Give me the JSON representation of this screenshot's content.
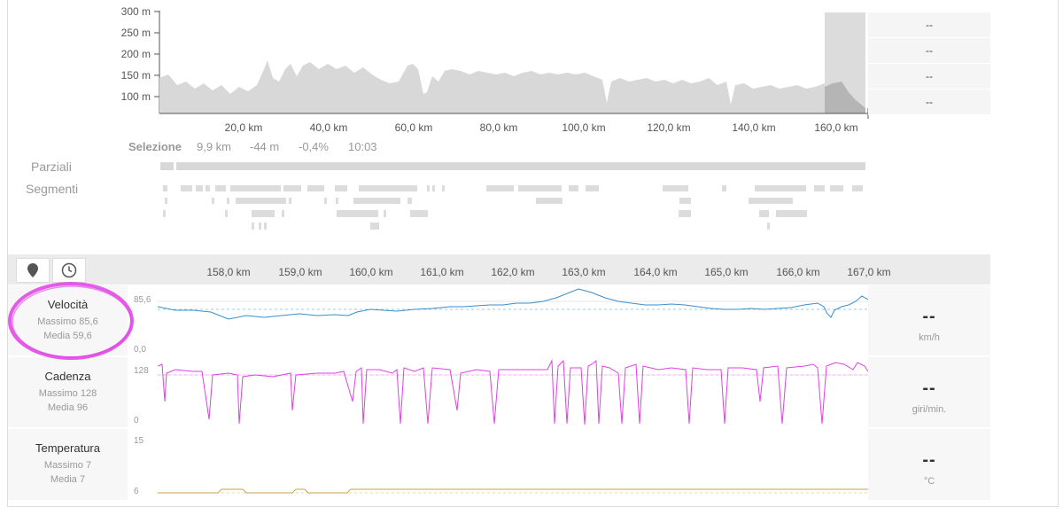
{
  "elevation": {
    "y_labels": [
      "300 m",
      "250 m",
      "200 m",
      "150 m",
      "100 m"
    ],
    "x_labels": [
      "20,0 km",
      "40,0 km",
      "60,0 km",
      "80,0 km",
      "100,0 km",
      "120,0 km",
      "140,0 km",
      "160,0 km"
    ],
    "side_values": [
      "--",
      "--",
      "--",
      "--"
    ]
  },
  "selection": {
    "label": "Selezione",
    "distance": "9,9 km",
    "elevation": "-44 m",
    "grade": "-0,4%",
    "time": "10:03"
  },
  "rows": {
    "parziali": "Parziali",
    "segmenti": "Segmenti"
  },
  "detail_ticks": [
    "158,0 km",
    "159,0 km",
    "160,0 km",
    "161,0 km",
    "162,0 km",
    "163,0 km",
    "164,0 km",
    "165,0 km",
    "166,0 km",
    "167,0 km"
  ],
  "controls": {
    "location_icon": "map-pin-icon",
    "time_icon": "clock-icon"
  },
  "metrics": [
    {
      "title": "Velocità",
      "max": "Massimo 85,6",
      "avg": "Media 59,6",
      "ymax": "85,6",
      "ymin": "0,0",
      "value": "--",
      "unit": "km/h",
      "color": "#3a8fc9"
    },
    {
      "title": "Cadenza",
      "max": "Massimo 128",
      "avg": "Media 96",
      "ymax": "128",
      "ymin": "0",
      "value": "--",
      "unit": "giri/min.",
      "color": "#e040e6"
    },
    {
      "title": "Temperatura",
      "max": "Massimo 7",
      "avg": "Media 7",
      "ymax": "15",
      "ymin": "6",
      "value": "--",
      "unit": "°C",
      "color": "#c8a24a"
    }
  ],
  "highlight_color": "#e040e6"
}
